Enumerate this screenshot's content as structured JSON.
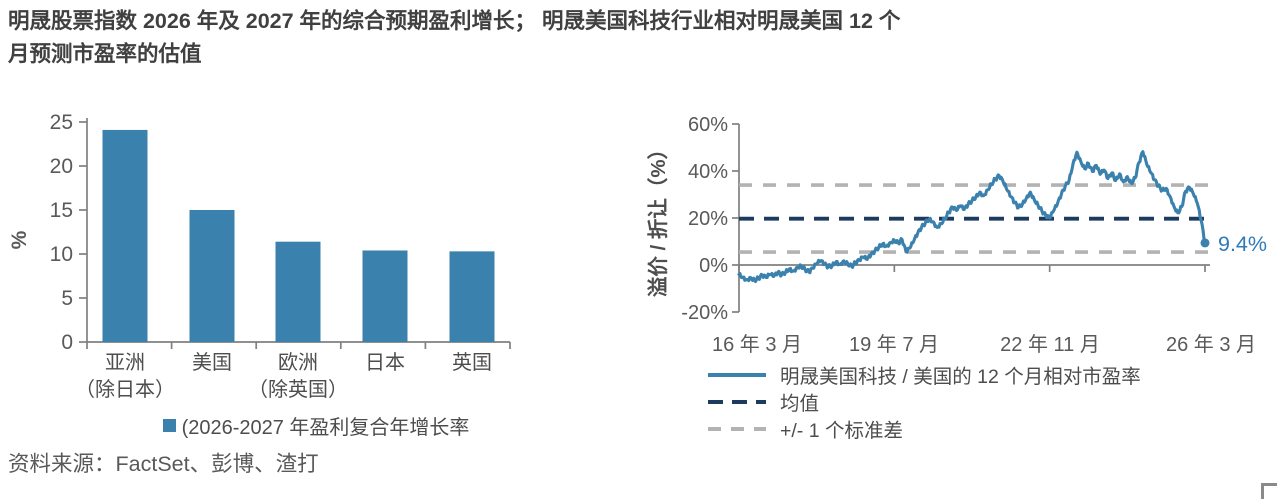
{
  "title": {
    "line1": "明晟股票指数 2026 年及 2027 年的综合预期盈利增长； 明晟美国科技行业相对明晟美国 12 个",
    "line2": "月预测市盈率的估值"
  },
  "source": "资料来源：FactSet、彭博、渣打",
  "colors": {
    "bar_blue": "#3a81ae",
    "line_blue": "#3a81ae",
    "mean_navy": "#1d3a5f",
    "band_gray": "#b3b3b3",
    "axis_gray": "#808080",
    "tick_text": "#595959",
    "label_text": "#4d4d4d",
    "annotation_blue": "#2e7bba"
  },
  "chart_data": [
    {
      "type": "bar",
      "title": "",
      "categories": [
        [
          "亚洲",
          "（除日本）"
        ],
        [
          "美国"
        ],
        [
          "欧洲",
          "（除英国）"
        ],
        [
          "日本"
        ],
        [
          "英国"
        ]
      ],
      "values": [
        24.1,
        15.0,
        11.4,
        10.4,
        10.3
      ],
      "ylabel": "%",
      "yticks": [
        0,
        5,
        10,
        15,
        20,
        25
      ],
      "ylim": [
        0,
        25
      ],
      "grid": false,
      "legend": "(2026-2027 年盈利复合年增长率",
      "legend_position": "bottom-center"
    },
    {
      "type": "line",
      "title": "",
      "ylabel": "溢价 / 折让（%）",
      "yticks": [
        60,
        40,
        20,
        0,
        -20
      ],
      "yticklabels": [
        "60%",
        "40%",
        "20%",
        "0%",
        "-20%"
      ],
      "ylim": [
        -20,
        60
      ],
      "x_unit": "months since 2016-03",
      "xticks_months": [
        0,
        40,
        80,
        120
      ],
      "xticklabels": [
        "16 年 3 月",
        "19 年 7 月",
        "22 年 11 月",
        "26 年 3 月"
      ],
      "mean": 19.7,
      "upper_band": 34.0,
      "lower_band": 5.5,
      "end_label": "9.4%",
      "end_value": 9.4,
      "grid": false,
      "legend": [
        "明晟美国科技 / 美国的 12 个月相对市盈率",
        "均值",
        "+/- 1 个标准差"
      ],
      "legend_position": "bottom-left",
      "series": [
        {
          "name": "明晟美国科技 / 美国的 12 个月相对市盈率",
          "values": [
            -4.0,
            -5.2,
            -6.3,
            -5.4,
            -6.5,
            -5.6,
            -4.4,
            -5.3,
            -4.0,
            -4.8,
            -3.2,
            -4.2,
            -3.0,
            -1.6,
            -2.6,
            -1.0,
            -0.4,
            -1.8,
            -3.0,
            -1.4,
            0.6,
            1.8,
            0.4,
            -0.8,
            -0.2,
            1.4,
            0.2,
            1.8,
            0.6,
            -0.6,
            1.0,
            2.0,
            3.4,
            2.4,
            4.4,
            6.0,
            7.6,
            9.0,
            8.0,
            9.6,
            10.6,
            9.4,
            10.8,
            5.6,
            7.2,
            10.2,
            13.4,
            16.0,
            18.0,
            19.6,
            18.4,
            16.0,
            17.6,
            19.8,
            22.4,
            24.6,
            23.2,
            25.2,
            23.6,
            25.8,
            27.4,
            29.0,
            31.0,
            29.5,
            32.0,
            34.5,
            36.5,
            38.0,
            35.5,
            32.0,
            29.0,
            26.5,
            24.5,
            26.0,
            28.5,
            31.0,
            28.0,
            25.5,
            23.0,
            21.0,
            20.0,
            23.0,
            26.0,
            30.0,
            33.5,
            36.0,
            43.0,
            48.0,
            44.2,
            41.0,
            43.2,
            39.8,
            42.4,
            38.6,
            40.4,
            36.8,
            39.2,
            36.0,
            38.8,
            35.4,
            37.6,
            34.8,
            37.0,
            43.6,
            48.2,
            42.8,
            39.4,
            36.2,
            33.6,
            31.8,
            32.6,
            29.2,
            25.0,
            22.2,
            24.8,
            31.4,
            33.0,
            30.2,
            26.4,
            19.0,
            9.4
          ]
        }
      ]
    }
  ]
}
